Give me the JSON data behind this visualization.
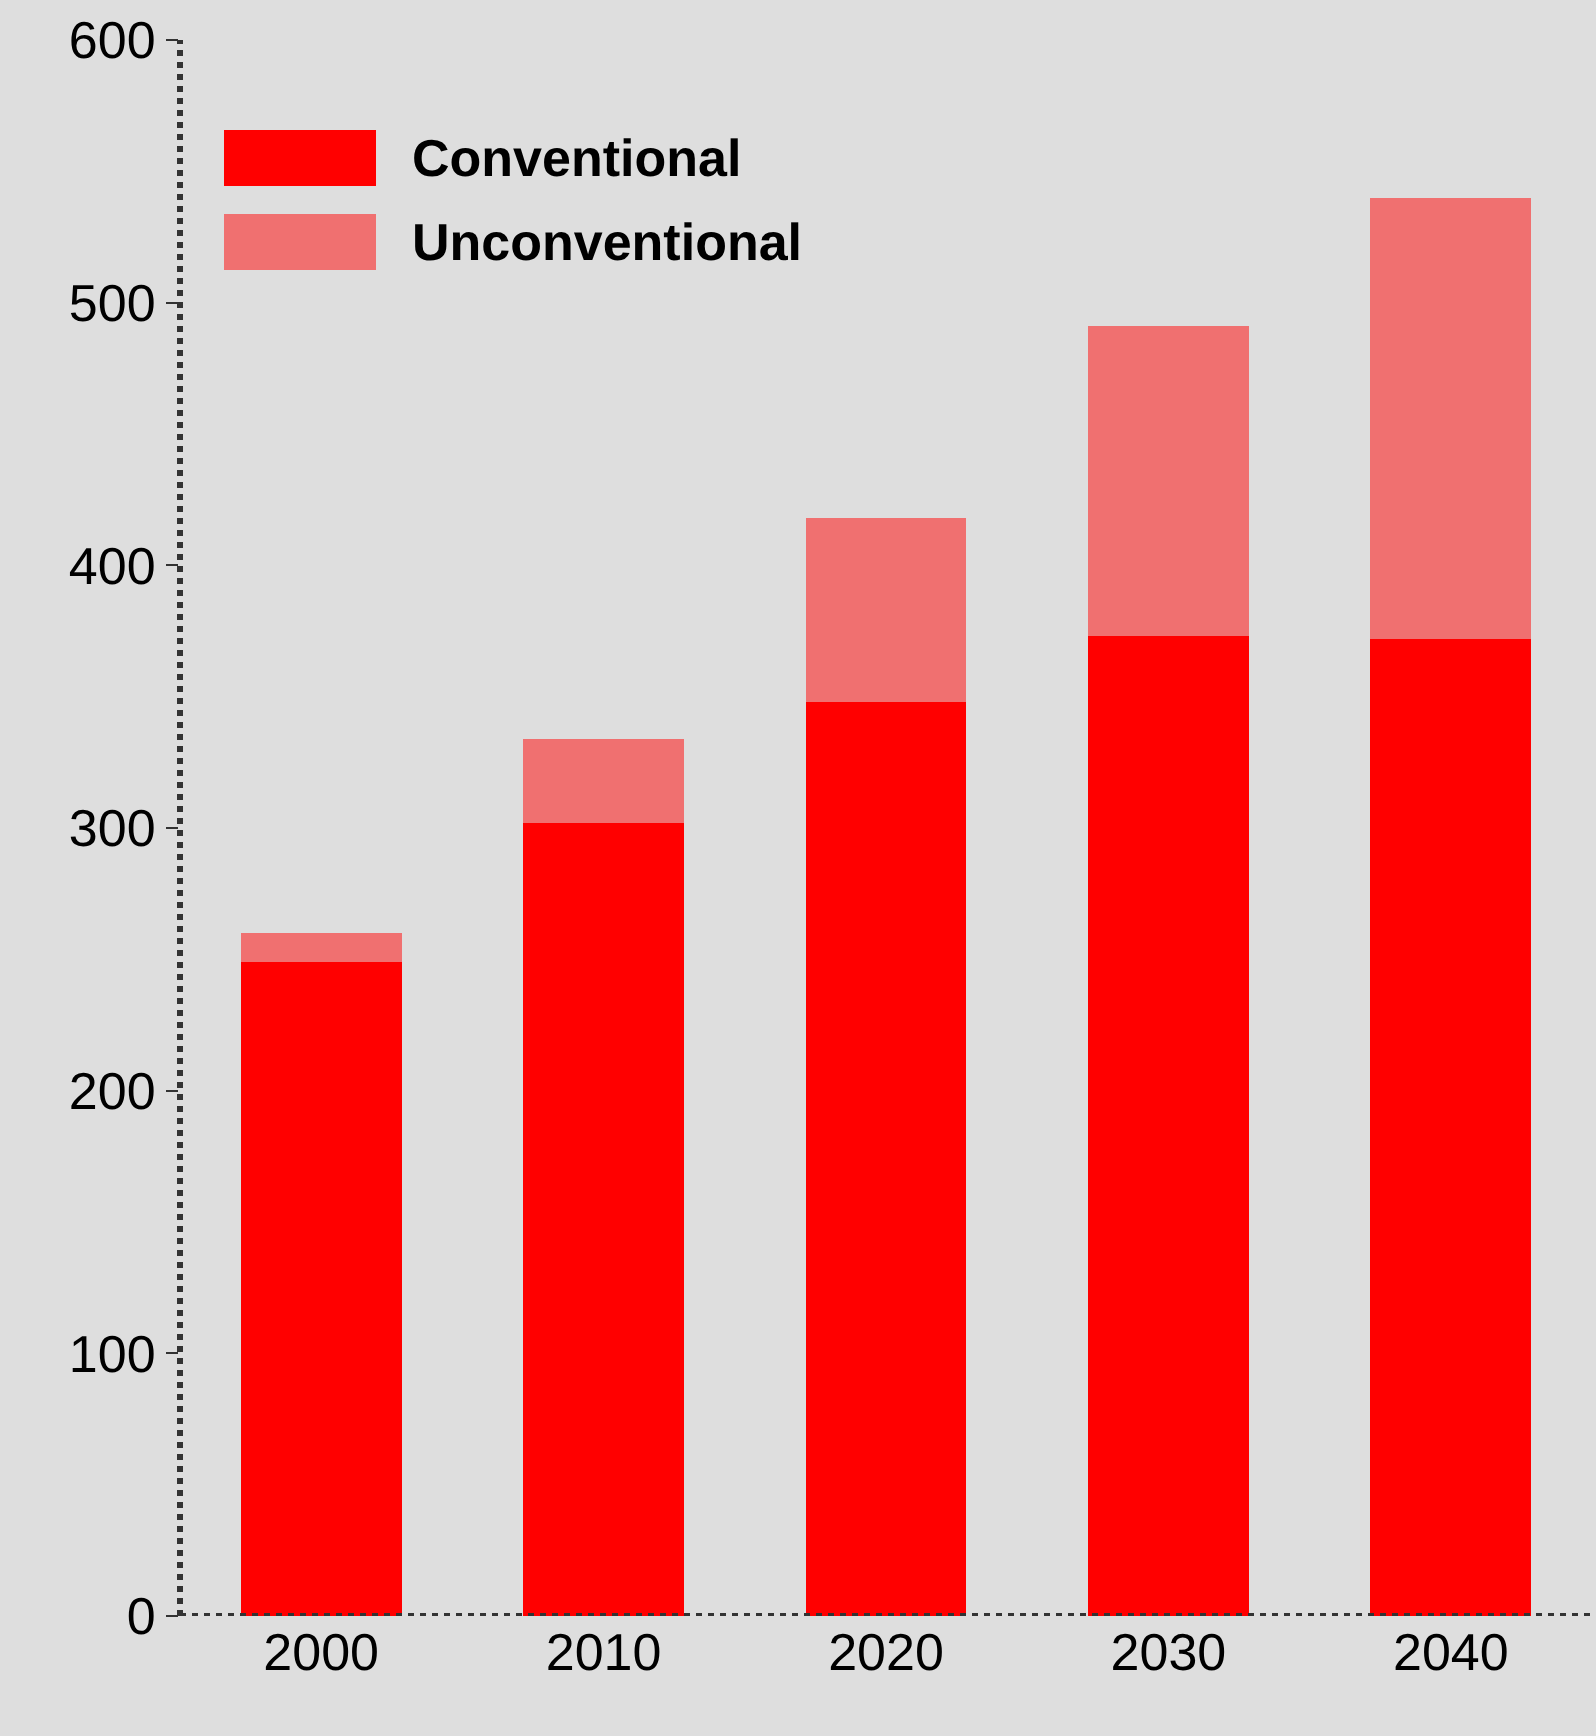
{
  "chart_data": {
    "type": "bar",
    "stacked": true,
    "categories": [
      "2000",
      "2010",
      "2020",
      "2030",
      "2040"
    ],
    "series": [
      {
        "name": "Conventional",
        "color": "#ff0000",
        "values": [
          249,
          302,
          348,
          373,
          372
        ]
      },
      {
        "name": "Unconventional",
        "color": "#f07070",
        "values": [
          11,
          32,
          70,
          118,
          168
        ]
      }
    ],
    "ylim": [
      0,
      600
    ],
    "yticks": [
      0,
      100,
      200,
      300,
      400,
      500,
      600
    ],
    "grid": false,
    "legend": "top left"
  }
}
